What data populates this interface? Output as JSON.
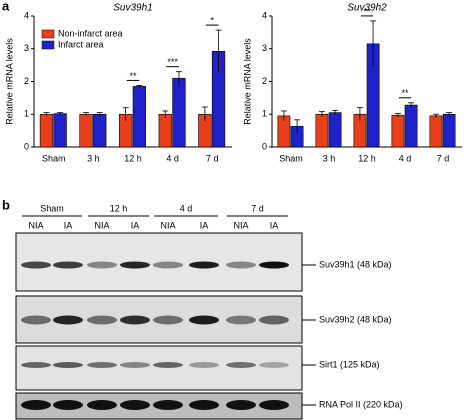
{
  "panel_labels": [
    "a",
    "b"
  ],
  "chart_data": [
    {
      "type": "bar",
      "title": "Suv39h1",
      "y_label": "Relative mRNA levels",
      "categories": [
        "Sham",
        "3 h",
        "12 h",
        "4 d",
        "7 d"
      ],
      "series": [
        {
          "name": "Non-infarct area",
          "color": "#e8401c",
          "values": [
            1.0,
            1.0,
            1.0,
            1.0,
            1.0
          ],
          "errors": [
            0.05,
            0.05,
            0.2,
            0.1,
            0.22
          ]
        },
        {
          "name": "Infarct area",
          "color": "#1f22c8",
          "values": [
            1.02,
            1.0,
            1.85,
            2.1,
            2.92
          ],
          "errors": [
            0.03,
            0.05,
            0.03,
            0.2,
            0.65
          ]
        }
      ],
      "annotations": [
        null,
        null,
        "**",
        "***",
        "*"
      ],
      "ylim": [
        0,
        4
      ],
      "yticks": [
        0,
        1,
        2,
        3,
        4
      ],
      "legend": "upper left"
    },
    {
      "type": "bar",
      "title": "Suv39h2",
      "y_label": "Relative mRNA levels",
      "categories": [
        "Sham",
        "3 h",
        "12 h",
        "4 d",
        "7 d"
      ],
      "series": [
        {
          "name": "Non-infarct area",
          "color": "#e8401c",
          "values": [
            0.95,
            1.0,
            1.0,
            0.97,
            0.95
          ],
          "errors": [
            0.15,
            0.08,
            0.2,
            0.05,
            0.05
          ]
        },
        {
          "name": "Infarct area",
          "color": "#1f22c8",
          "values": [
            0.63,
            1.05,
            3.15,
            1.28,
            1.0
          ],
          "errors": [
            0.2,
            0.07,
            0.7,
            0.07,
            0.05
          ]
        }
      ],
      "annotations": [
        null,
        null,
        "**",
        "**",
        null
      ],
      "ylim": [
        0,
        4
      ],
      "yticks": [
        0,
        1,
        2,
        3,
        4
      ]
    }
  ],
  "blot": {
    "groups": [
      "Sham",
      "12 h",
      "4 d",
      "7 d"
    ],
    "lanes": [
      "NIA",
      "IA",
      "NIA",
      "IA",
      "NIA",
      "IA",
      "NIA",
      "IA"
    ],
    "rows": [
      "Suv39h1 (48 kDa)",
      "Suv39h2 (48 kDa)",
      "Sirt1 (125 kDa)",
      "RNA Pol II (220 kDa)"
    ]
  }
}
